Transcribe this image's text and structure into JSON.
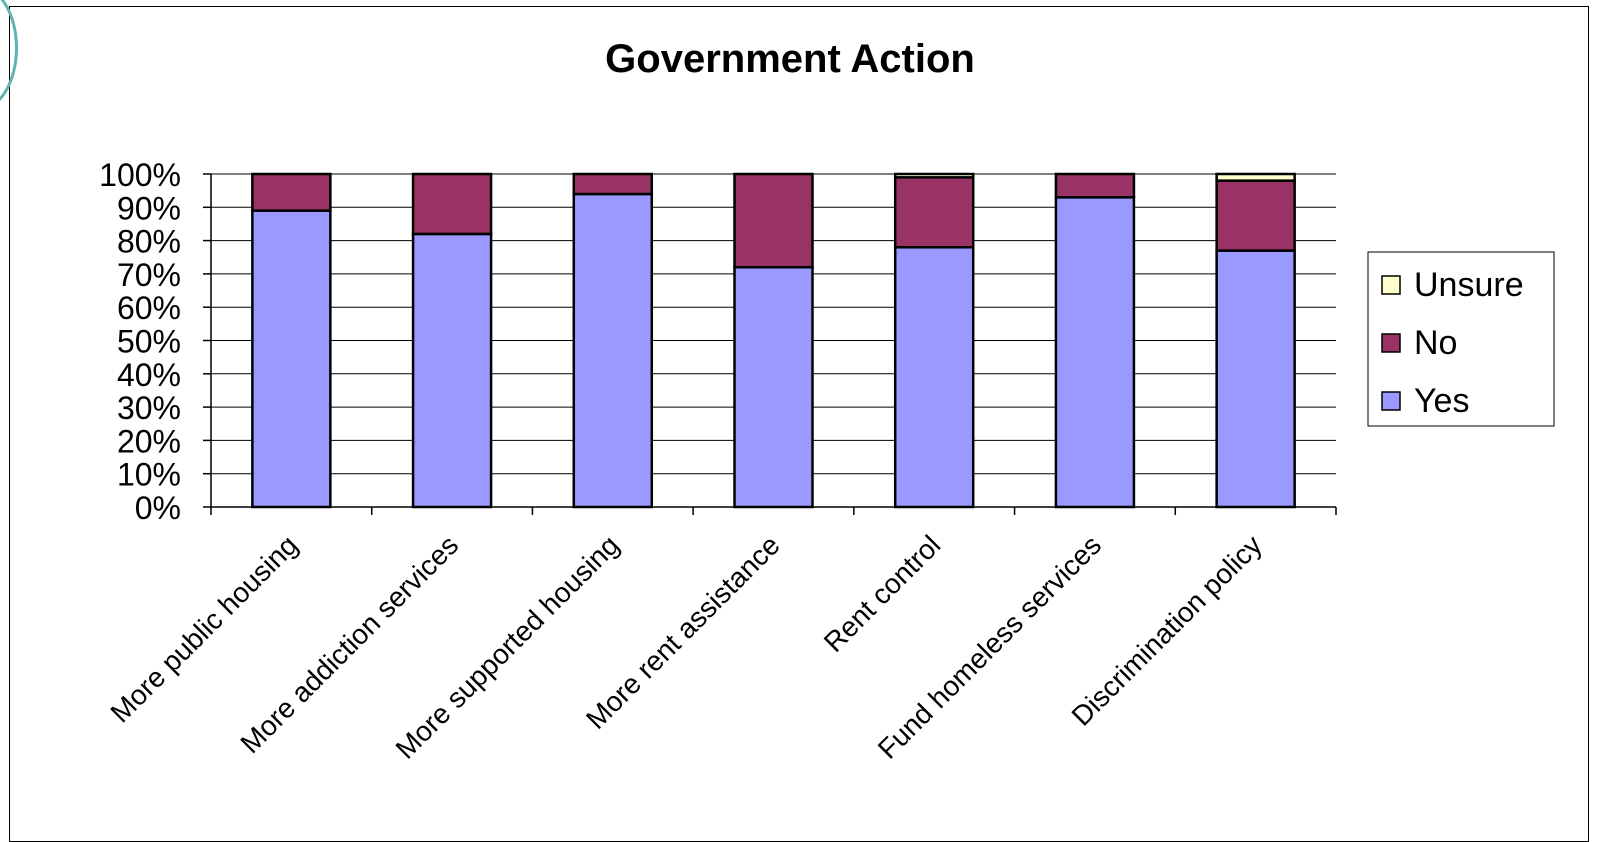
{
  "chart_data": {
    "type": "bar",
    "stacked": true,
    "percent_stacked": true,
    "title": "Government Action",
    "xlabel": "",
    "ylabel": "",
    "ylim": [
      0,
      100
    ],
    "yticks": [
      "0%",
      "10%",
      "20%",
      "30%",
      "40%",
      "50%",
      "60%",
      "70%",
      "80%",
      "90%",
      "100%"
    ],
    "categories": [
      "More public housing",
      "More addiction services",
      "More supported housing",
      "More rent assistance",
      "Rent control",
      "Fund homeless services",
      "Discrimination policy"
    ],
    "series": [
      {
        "name": "Yes",
        "color": "#9999ff",
        "values": [
          89,
          82,
          94,
          72,
          78,
          93,
          77
        ]
      },
      {
        "name": "No",
        "color": "#993366",
        "values": [
          11,
          18,
          6,
          28,
          21,
          7,
          21
        ]
      },
      {
        "name": "Unsure",
        "color": "#ffffcc",
        "values": [
          0,
          0,
          0,
          0,
          1,
          0,
          2
        ]
      }
    ],
    "legend": {
      "position": "right",
      "order": [
        "Unsure",
        "No",
        "Yes"
      ]
    },
    "grid": true
  }
}
